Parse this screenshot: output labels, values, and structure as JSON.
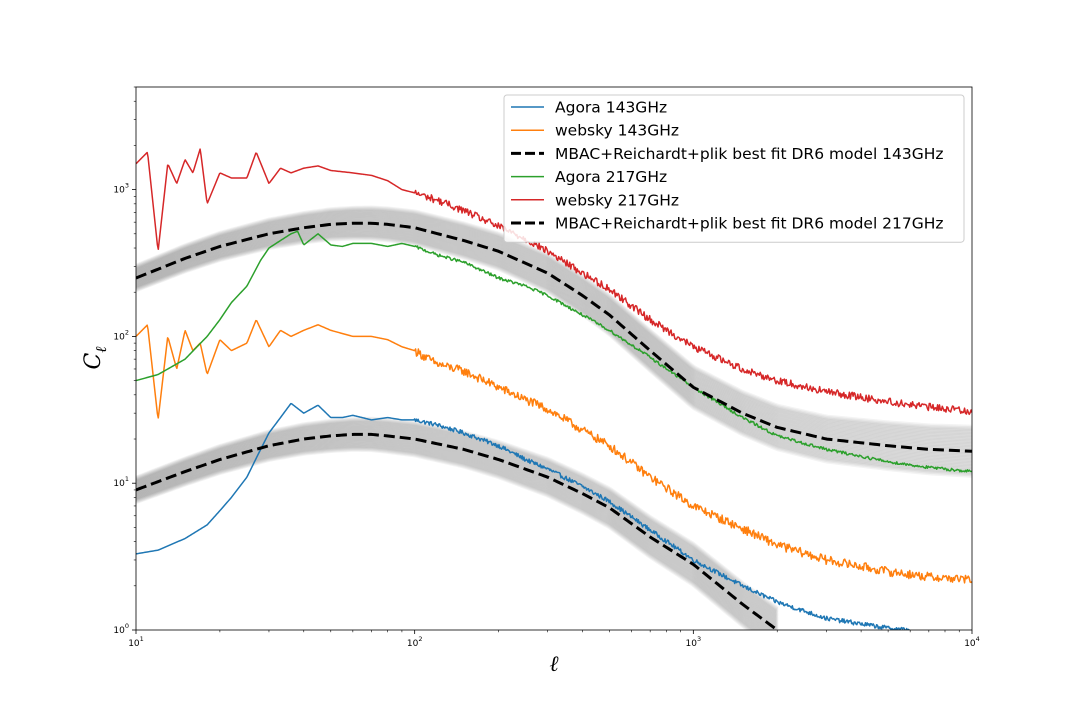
{
  "chart_data": {
    "type": "line",
    "title": "",
    "xlabel": "ℓ",
    "ylabel": "C",
    "ylabel_subscript": "ℓ",
    "xscale": "log",
    "yscale": "log",
    "xlim": [
      10,
      10000
    ],
    "ylim": [
      1,
      5000
    ],
    "grid": false,
    "legend_position": "top-right",
    "x_ticks": [
      {
        "value": 10,
        "base": "10",
        "exp": "1"
      },
      {
        "value": 100,
        "base": "10",
        "exp": "2"
      },
      {
        "value": 1000,
        "base": "10",
        "exp": "3"
      },
      {
        "value": 10000,
        "base": "10",
        "exp": "4"
      }
    ],
    "y_ticks": [
      {
        "value": 1,
        "base": "10",
        "exp": "0"
      },
      {
        "value": 10,
        "base": "10",
        "exp": "1"
      },
      {
        "value": 100,
        "base": "10",
        "exp": "2"
      },
      {
        "value": 1000,
        "base": "10",
        "exp": "3"
      }
    ],
    "series": [
      {
        "name": "Agora 143GHz",
        "color": "#1f77b4",
        "style": "solid",
        "noise": 0.03,
        "x": [
          10,
          12,
          15,
          18,
          20,
          22,
          25,
          28,
          30,
          33,
          36,
          40,
          45,
          50,
          55,
          60,
          70,
          80,
          90,
          100,
          120,
          150,
          200,
          250,
          300,
          400,
          500,
          700,
          1000,
          1500,
          2000,
          3000,
          5000,
          6000
        ],
        "y": [
          3.3,
          3.5,
          4.2,
          5.2,
          6.5,
          8.0,
          11,
          17,
          22,
          28,
          35,
          30,
          34,
          28,
          28,
          29,
          27,
          28,
          27,
          27,
          25,
          22,
          18,
          14.5,
          12.5,
          9.5,
          7.5,
          4.8,
          3.0,
          2.0,
          1.55,
          1.2,
          1.03,
          1.0
        ]
      },
      {
        "name": "websky 143GHz",
        "color": "#ff7f0e",
        "style": "solid",
        "noise": 0.06,
        "x": [
          10,
          11,
          12,
          13,
          14,
          15,
          16,
          17,
          18,
          20,
          22,
          25,
          27,
          30,
          33,
          36,
          40,
          45,
          50,
          60,
          70,
          80,
          90,
          100,
          120,
          150,
          200,
          250,
          300,
          400,
          500,
          700,
          1000,
          1500,
          2000,
          3000,
          5000,
          7000,
          10000
        ],
        "y": [
          100,
          120,
          27,
          100,
          60,
          110,
          80,
          90,
          55,
          95,
          80,
          90,
          130,
          85,
          110,
          100,
          110,
          120,
          110,
          100,
          100,
          95,
          85,
          80,
          65,
          58,
          45,
          37,
          32,
          23,
          18,
          11,
          7.0,
          4.9,
          3.8,
          3.0,
          2.5,
          2.3,
          2.2
        ]
      },
      {
        "name": "MBAC+Reichardt+plik best fit DR6 model 143GHz",
        "color": "#000000",
        "style": "dashed",
        "band": true,
        "x": [
          10,
          15,
          20,
          30,
          40,
          50,
          60,
          70,
          80,
          100,
          150,
          200,
          300,
          400,
          500,
          700,
          1000,
          1500,
          2000
        ],
        "y": [
          9.0,
          12,
          14.5,
          18,
          20,
          21,
          21.5,
          21.5,
          21,
          20,
          17,
          14.5,
          11,
          8.5,
          6.8,
          4.3,
          2.8,
          1.5,
          1.0
        ]
      },
      {
        "name": "Agora 217GHz",
        "color": "#2ca02c",
        "style": "solid",
        "noise": 0.02,
        "x": [
          10,
          12,
          15,
          18,
          20,
          22,
          25,
          28,
          30,
          33,
          36,
          38,
          40,
          45,
          50,
          55,
          60,
          70,
          80,
          90,
          100,
          120,
          150,
          200,
          250,
          300,
          400,
          500,
          700,
          1000,
          1500,
          2000,
          3000,
          5000,
          7000,
          10000
        ],
        "y": [
          50,
          55,
          70,
          100,
          130,
          170,
          220,
          330,
          400,
          450,
          500,
          520,
          420,
          500,
          420,
          410,
          430,
          430,
          410,
          430,
          410,
          360,
          320,
          250,
          220,
          190,
          140,
          110,
          72,
          45,
          28,
          21,
          17,
          14,
          12.8,
          12
        ]
      },
      {
        "name": "websky 217GHz",
        "color": "#d62728",
        "style": "solid",
        "noise": 0.05,
        "x": [
          10,
          11,
          12,
          13,
          14,
          15,
          16,
          17,
          18,
          20,
          22,
          25,
          27,
          30,
          33,
          36,
          40,
          45,
          50,
          60,
          70,
          80,
          90,
          100,
          120,
          150,
          200,
          250,
          300,
          400,
          500,
          700,
          1000,
          1500,
          2000,
          3000,
          5000,
          7000,
          10000
        ],
        "y": [
          1500,
          1800,
          380,
          1500,
          1100,
          1600,
          1300,
          1900,
          800,
          1300,
          1200,
          1200,
          1800,
          1100,
          1400,
          1300,
          1400,
          1450,
          1350,
          1300,
          1250,
          1150,
          1000,
          950,
          850,
          720,
          560,
          460,
          380,
          270,
          210,
          130,
          85,
          60,
          50,
          42,
          36,
          33,
          31
        ]
      },
      {
        "name": "MBAC+Reichardt+plik best fit DR6 model 217GHz",
        "color": "#000000",
        "style": "dashed",
        "band": true,
        "x": [
          10,
          15,
          20,
          30,
          40,
          50,
          60,
          70,
          80,
          100,
          150,
          200,
          300,
          400,
          500,
          700,
          1000,
          1500,
          2000,
          3000,
          5000,
          7000,
          10000
        ],
        "y": [
          250,
          340,
          410,
          500,
          550,
          580,
          590,
          590,
          580,
          550,
          450,
          380,
          270,
          190,
          140,
          80,
          45,
          30,
          24,
          20,
          18,
          17,
          16.5
        ]
      }
    ]
  }
}
